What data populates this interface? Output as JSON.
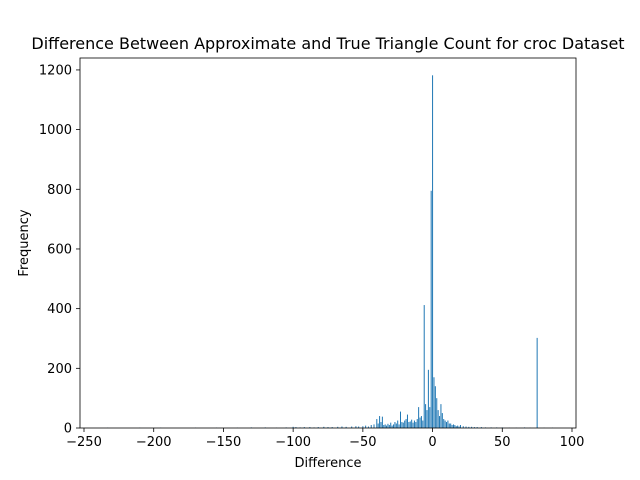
{
  "chart_data": {
    "type": "bar",
    "title": "Difference Between Approximate and True Triangle Count for croc Dataset",
    "xlabel": "Difference",
    "ylabel": "Frequency",
    "xlim": [
      -250,
      100
    ],
    "ylim": [
      0,
      1240
    ],
    "xticks": [
      -250,
      -200,
      -150,
      -100,
      -50,
      0,
      50,
      100
    ],
    "yticks": [
      0,
      200,
      400,
      600,
      800,
      1000,
      1200
    ],
    "bar_color": "#1f77b4",
    "grid": false,
    "bins": [
      {
        "x": -233,
        "y": 1
      },
      {
        "x": -210,
        "y": 1
      },
      {
        "x": -195,
        "y": 1
      },
      {
        "x": -170,
        "y": 1
      },
      {
        "x": -155,
        "y": 1
      },
      {
        "x": -140,
        "y": 1
      },
      {
        "x": -130,
        "y": 2
      },
      {
        "x": -120,
        "y": 2
      },
      {
        "x": -112,
        "y": 1
      },
      {
        "x": -105,
        "y": 2
      },
      {
        "x": -100,
        "y": 4
      },
      {
        "x": -98,
        "y": 3
      },
      {
        "x": -95,
        "y": 2
      },
      {
        "x": -92,
        "y": 3
      },
      {
        "x": -88,
        "y": 3
      },
      {
        "x": -85,
        "y": 2
      },
      {
        "x": -82,
        "y": 3
      },
      {
        "x": -78,
        "y": 4
      },
      {
        "x": -75,
        "y": 3
      },
      {
        "x": -72,
        "y": 3
      },
      {
        "x": -68,
        "y": 4
      },
      {
        "x": -65,
        "y": 5
      },
      {
        "x": -62,
        "y": 4
      },
      {
        "x": -58,
        "y": 5
      },
      {
        "x": -55,
        "y": 6
      },
      {
        "x": -53,
        "y": 5
      },
      {
        "x": -50,
        "y": 6
      },
      {
        "x": -48,
        "y": 8
      },
      {
        "x": -46,
        "y": 5
      },
      {
        "x": -44,
        "y": 10
      },
      {
        "x": -42,
        "y": 12
      },
      {
        "x": -40,
        "y": 30
      },
      {
        "x": -39,
        "y": 15
      },
      {
        "x": -38,
        "y": 40
      },
      {
        "x": -37,
        "y": 20
      },
      {
        "x": -36,
        "y": 38
      },
      {
        "x": -35,
        "y": 10
      },
      {
        "x": -34,
        "y": 12
      },
      {
        "x": -33,
        "y": 8
      },
      {
        "x": -32,
        "y": 14
      },
      {
        "x": -31,
        "y": 10
      },
      {
        "x": -30,
        "y": 18
      },
      {
        "x": -29,
        "y": 8
      },
      {
        "x": -28,
        "y": 12
      },
      {
        "x": -27,
        "y": 20
      },
      {
        "x": -26,
        "y": 15
      },
      {
        "x": -25,
        "y": 25
      },
      {
        "x": -24,
        "y": 12
      },
      {
        "x": -23,
        "y": 55
      },
      {
        "x": -22,
        "y": 20
      },
      {
        "x": -21,
        "y": 18
      },
      {
        "x": -20,
        "y": 25
      },
      {
        "x": -19,
        "y": 30
      },
      {
        "x": -18,
        "y": 45
      },
      {
        "x": -17,
        "y": 20
      },
      {
        "x": -16,
        "y": 22
      },
      {
        "x": -15,
        "y": 28
      },
      {
        "x": -14,
        "y": 18
      },
      {
        "x": -13,
        "y": 25
      },
      {
        "x": -12,
        "y": 20
      },
      {
        "x": -11,
        "y": 30
      },
      {
        "x": -10,
        "y": 70
      },
      {
        "x": -9,
        "y": 35
      },
      {
        "x": -8,
        "y": 40
      },
      {
        "x": -7,
        "y": 25
      },
      {
        "x": -6,
        "y": 412
      },
      {
        "x": -5,
        "y": 80
      },
      {
        "x": -4,
        "y": 60
      },
      {
        "x": -3,
        "y": 195
      },
      {
        "x": -2,
        "y": 70
      },
      {
        "x": -1,
        "y": 795
      },
      {
        "x": 0,
        "y": 1182
      },
      {
        "x": 1,
        "y": 170
      },
      {
        "x": 2,
        "y": 140
      },
      {
        "x": 3,
        "y": 100
      },
      {
        "x": 4,
        "y": 60
      },
      {
        "x": 5,
        "y": 40
      },
      {
        "x": 6,
        "y": 80
      },
      {
        "x": 7,
        "y": 50
      },
      {
        "x": 8,
        "y": 30
      },
      {
        "x": 9,
        "y": 25
      },
      {
        "x": 10,
        "y": 20
      },
      {
        "x": 11,
        "y": 25
      },
      {
        "x": 12,
        "y": 15
      },
      {
        "x": 13,
        "y": 15
      },
      {
        "x": 14,
        "y": 10
      },
      {
        "x": 15,
        "y": 12
      },
      {
        "x": 16,
        "y": 10
      },
      {
        "x": 17,
        "y": 6
      },
      {
        "x": 18,
        "y": 8
      },
      {
        "x": 19,
        "y": 5
      },
      {
        "x": 20,
        "y": 10
      },
      {
        "x": 22,
        "y": 6
      },
      {
        "x": 24,
        "y": 5
      },
      {
        "x": 26,
        "y": 4
      },
      {
        "x": 28,
        "y": 4
      },
      {
        "x": 30,
        "y": 3
      },
      {
        "x": 32,
        "y": 3
      },
      {
        "x": 35,
        "y": 3
      },
      {
        "x": 38,
        "y": 2
      },
      {
        "x": 42,
        "y": 2
      },
      {
        "x": 46,
        "y": 2
      },
      {
        "x": 50,
        "y": 2
      },
      {
        "x": 55,
        "y": 1
      },
      {
        "x": 60,
        "y": 1
      },
      {
        "x": 66,
        "y": 2
      },
      {
        "x": 70,
        "y": 1
      },
      {
        "x": 75,
        "y": 302
      },
      {
        "x": 80,
        "y": 1
      },
      {
        "x": 86,
        "y": 1
      }
    ]
  }
}
